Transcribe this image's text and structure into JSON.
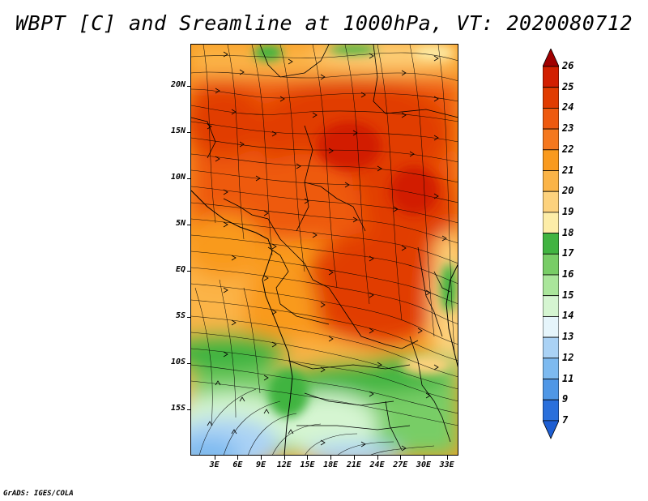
{
  "title": "WBPT [C] and Sreamline at 1000hPa, VT: 2020080712",
  "footer": "GrADS: IGES/COLA",
  "y_axis": {
    "labels": [
      "20N",
      "15N",
      "10N",
      "5N",
      "EQ",
      "5S",
      "10S",
      "15S"
    ],
    "values": [
      20,
      15,
      10,
      5,
      0,
      -5,
      -10,
      -15
    ]
  },
  "x_axis": {
    "labels": [
      "3E",
      "6E",
      "9E",
      "12E",
      "15E",
      "18E",
      "21E",
      "24E",
      "27E",
      "30E",
      "33E"
    ],
    "values": [
      3,
      6,
      9,
      12,
      15,
      18,
      21,
      24,
      27,
      30,
      33
    ]
  },
  "map_extent": {
    "lon_min": 0,
    "lon_max": 34.5,
    "lat_min": -20,
    "lat_max": 24.5
  },
  "colorbar": {
    "labels": [
      "26",
      "25",
      "24",
      "23",
      "22",
      "21",
      "20",
      "19",
      "18",
      "17",
      "16",
      "15",
      "14",
      "13",
      "12",
      "11",
      "9",
      "7"
    ],
    "colors": [
      "#b40000",
      "#d21f00",
      "#e13c00",
      "#ee5a0f",
      "#f5781e",
      "#f99a1e",
      "#fbb447",
      "#fdd27d",
      "#fdeda8",
      "#41b441",
      "#78cd66",
      "#aae69b",
      "#d5f5d1",
      "#e6f5fb",
      "#aad2f5",
      "#7dbaf0",
      "#4f97e6",
      "#2a6fdb"
    ],
    "top_arrow_color": "#a00000",
    "bottom_arrow_color": "#1e5ed2"
  }
}
